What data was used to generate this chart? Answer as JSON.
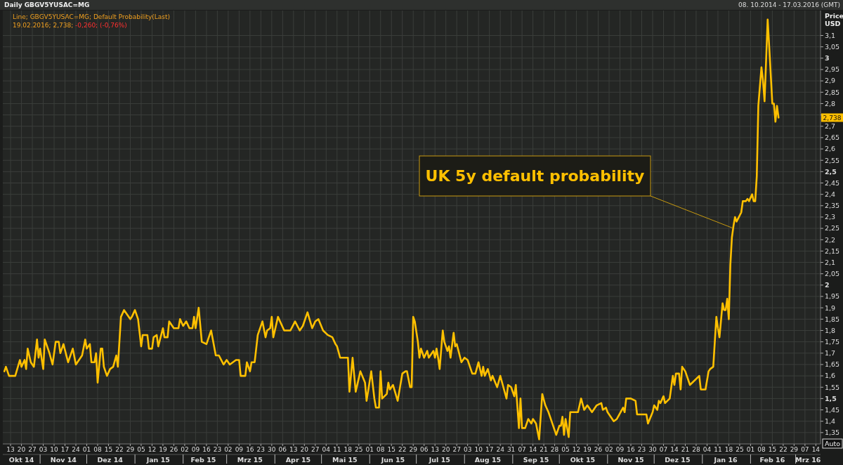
{
  "chart_data": {
    "type": "line",
    "title": "Daily GBGV5YUSAC=MG",
    "subtitle": "Line; GBGV5YUSAC=MG; Default Probability(Last)",
    "ylabel": "Price USD",
    "annotations": [
      "08. 10.2014 - 17.03.2016 (GMT)",
      "19.02.2016; 2,738; -0,260; (-0,76%)",
      {
        "text": "UK 5y default probability",
        "x": "2016-01-21",
        "y": 2.25
      },
      "2,738",
      "Auto"
    ],
    "grid": true,
    "xlim": [
      "2014-10-08",
      "2016-03-17"
    ],
    "ylim": [
      1.3,
      3.21
    ],
    "xticks": [
      {
        "value": "2014-10-13",
        "label": "13"
      },
      {
        "value": "2014-10-20",
        "label": "20"
      },
      {
        "value": "2014-10-27",
        "label": "27"
      },
      {
        "value": "2014-11-03",
        "label": "03"
      },
      {
        "value": "2014-11-10",
        "label": "10"
      },
      {
        "value": "2014-11-17",
        "label": "17"
      },
      {
        "value": "2014-11-24",
        "label": "24"
      },
      {
        "value": "2014-12-01",
        "label": "01"
      },
      {
        "value": "2014-12-08",
        "label": "08"
      },
      {
        "value": "2014-12-15",
        "label": "15"
      },
      {
        "value": "2014-12-22",
        "label": "22"
      },
      {
        "value": "2014-12-29",
        "label": "29"
      },
      {
        "value": "2015-01-05",
        "label": "05"
      },
      {
        "value": "2015-01-12",
        "label": "12"
      },
      {
        "value": "2015-01-19",
        "label": "19"
      },
      {
        "value": "2015-01-26",
        "label": "26"
      },
      {
        "value": "2015-02-02",
        "label": "02"
      },
      {
        "value": "2015-02-09",
        "label": "09"
      },
      {
        "value": "2015-02-16",
        "label": "16"
      },
      {
        "value": "2015-02-23",
        "label": "23"
      },
      {
        "value": "2015-03-02",
        "label": "02"
      },
      {
        "value": "2015-03-09",
        "label": "09"
      },
      {
        "value": "2015-03-16",
        "label": "16"
      },
      {
        "value": "2015-03-23",
        "label": "23"
      },
      {
        "value": "2015-03-30",
        "label": "30"
      },
      {
        "value": "2015-04-06",
        "label": "06"
      },
      {
        "value": "2015-04-13",
        "label": "13"
      },
      {
        "value": "2015-04-20",
        "label": "20"
      },
      {
        "value": "2015-04-27",
        "label": "27"
      },
      {
        "value": "2015-05-04",
        "label": "04"
      },
      {
        "value": "2015-05-11",
        "label": "11"
      },
      {
        "value": "2015-05-18",
        "label": "18"
      },
      {
        "value": "2015-05-25",
        "label": "25"
      },
      {
        "value": "2015-06-01",
        "label": "01"
      },
      {
        "value": "2015-06-08",
        "label": "08"
      },
      {
        "value": "2015-06-15",
        "label": "15"
      },
      {
        "value": "2015-06-22",
        "label": "22"
      },
      {
        "value": "2015-06-29",
        "label": "29"
      },
      {
        "value": "2015-07-06",
        "label": "06"
      },
      {
        "value": "2015-07-13",
        "label": "13"
      },
      {
        "value": "2015-07-20",
        "label": "20"
      },
      {
        "value": "2015-07-27",
        "label": "27"
      },
      {
        "value": "2015-08-03",
        "label": "03"
      },
      {
        "value": "2015-08-10",
        "label": "10"
      },
      {
        "value": "2015-08-17",
        "label": "17"
      },
      {
        "value": "2015-08-24",
        "label": "24"
      },
      {
        "value": "2015-08-31",
        "label": "31"
      },
      {
        "value": "2015-09-07",
        "label": "07"
      },
      {
        "value": "2015-09-14",
        "label": "14"
      },
      {
        "value": "2015-09-21",
        "label": "21"
      },
      {
        "value": "2015-09-28",
        "label": "28"
      },
      {
        "value": "2015-10-05",
        "label": "05"
      },
      {
        "value": "2015-10-12",
        "label": "12"
      },
      {
        "value": "2015-10-19",
        "label": "19"
      },
      {
        "value": "2015-10-26",
        "label": "26"
      },
      {
        "value": "2015-11-02",
        "label": "02"
      },
      {
        "value": "2015-11-09",
        "label": "09"
      },
      {
        "value": "2015-11-16",
        "label": "16"
      },
      {
        "value": "2015-11-23",
        "label": "23"
      },
      {
        "value": "2015-11-30",
        "label": "30"
      },
      {
        "value": "2015-12-07",
        "label": "07"
      },
      {
        "value": "2015-12-14",
        "label": "14"
      },
      {
        "value": "2015-12-21",
        "label": "21"
      },
      {
        "value": "2015-12-28",
        "label": "28"
      },
      {
        "value": "2016-01-04",
        "label": "04"
      },
      {
        "value": "2016-01-11",
        "label": "11"
      },
      {
        "value": "2016-01-18",
        "label": "18"
      },
      {
        "value": "2016-01-25",
        "label": "25"
      },
      {
        "value": "2016-02-01",
        "label": "01"
      },
      {
        "value": "2016-02-08",
        "label": "08"
      },
      {
        "value": "2016-02-15",
        "label": "15"
      },
      {
        "value": "2016-02-22",
        "label": "22"
      },
      {
        "value": "2016-02-29",
        "label": "29"
      },
      {
        "value": "2016-03-07",
        "label": "07"
      },
      {
        "value": "2016-03-14",
        "label": "14"
      }
    ],
    "x2lim": [
      "2014-10-08",
      "2016-03-17"
    ],
    "x2ticks": [
      {
        "value": "2014-10-20",
        "label": "Okt 14"
      },
      {
        "value": "2014-11-16",
        "label": "Nov 14"
      },
      {
        "value": "2014-12-16",
        "label": "Dez 14"
      },
      {
        "value": "2015-01-16",
        "label": "Jan 15"
      },
      {
        "value": "2015-02-14",
        "label": "Feb 15"
      },
      {
        "value": "2015-03-16",
        "label": "Mrz 15"
      },
      {
        "value": "2015-04-16",
        "label": "Apr 15"
      },
      {
        "value": "2015-05-16",
        "label": "Mai 15"
      },
      {
        "value": "2015-06-16",
        "label": "Jun 15"
      },
      {
        "value": "2015-07-16",
        "label": "Jul 15"
      },
      {
        "value": "2015-08-16",
        "label": "Aug 15"
      },
      {
        "value": "2015-09-16",
        "label": "Sep 15"
      },
      {
        "value": "2015-10-16",
        "label": "Okt 15"
      },
      {
        "value": "2015-11-16",
        "label": "Nov 15"
      },
      {
        "value": "2015-12-16",
        "label": "Dez 15"
      },
      {
        "value": "2016-01-16",
        "label": "Jan 16"
      },
      {
        "value": "2016-02-15",
        "label": "Feb 16"
      },
      {
        "value": "2016-03-09",
        "label": "Mrz 16"
      }
    ],
    "yticks": [
      {
        "value": 1.35,
        "label": "1,35"
      },
      {
        "value": 1.4,
        "label": "1,4"
      },
      {
        "value": 1.45,
        "label": "1,45"
      },
      {
        "value": 1.5,
        "label": "1,5"
      },
      {
        "value": 1.55,
        "label": "1,55"
      },
      {
        "value": 1.6,
        "label": "1,6"
      },
      {
        "value": 1.65,
        "label": "1,65"
      },
      {
        "value": 1.7,
        "label": "1,7"
      },
      {
        "value": 1.75,
        "label": "1,75"
      },
      {
        "value": 1.8,
        "label": "1,8"
      },
      {
        "value": 1.85,
        "label": "1,85"
      },
      {
        "value": 1.9,
        "label": "1,9"
      },
      {
        "value": 1.95,
        "label": "1,95"
      },
      {
        "value": 2,
        "label": "2"
      },
      {
        "value": 2.05,
        "label": "2,05"
      },
      {
        "value": 2.1,
        "label": "2,1"
      },
      {
        "value": 2.15,
        "label": "2,15"
      },
      {
        "value": 2.2,
        "label": "2,2"
      },
      {
        "value": 2.25,
        "label": "2,25"
      },
      {
        "value": 2.3,
        "label": "2,3"
      },
      {
        "value": 2.35,
        "label": "2,35"
      },
      {
        "value": 2.4,
        "label": "2,4"
      },
      {
        "value": 2.45,
        "label": "2,45"
      },
      {
        "value": 2.5,
        "label": "2,5"
      },
      {
        "value": 2.55,
        "label": "2,55"
      },
      {
        "value": 2.6,
        "label": "2,6"
      },
      {
        "value": 2.65,
        "label": "2,65"
      },
      {
        "value": 2.7,
        "label": "2,7"
      },
      {
        "value": 2.75,
        "label": null
      },
      {
        "value": 2.8,
        "label": "2,8"
      },
      {
        "value": 2.85,
        "label": "2,85"
      },
      {
        "value": 2.9,
        "label": "2,9"
      },
      {
        "value": 2.95,
        "label": "2,95"
      },
      {
        "value": 3,
        "label": "3"
      },
      {
        "value": 3.05,
        "label": "3,05"
      },
      {
        "value": 3.1,
        "label": "3,1"
      }
    ],
    "series": [
      {
        "color": "#ffc000",
        "x": [
          "2014-10-09",
          "2014-10-10",
          "2014-10-12",
          "2014-10-15",
          "2014-10-16",
          "2014-10-19",
          "2014-10-20",
          "2014-10-22",
          "2014-10-23",
          "2014-10-24",
          "2014-10-26",
          "2014-10-28",
          "2014-10-30",
          "2014-10-31",
          "2014-11-01",
          "2014-11-03",
          "2014-11-04",
          "2014-11-07",
          "2014-11-09",
          "2014-11-11",
          "2014-11-13",
          "2014-11-14",
          "2014-11-16",
          "2014-11-19",
          "2014-11-22",
          "2014-11-24",
          "2014-11-28",
          "2014-11-30",
          "2014-12-01",
          "2014-12-03",
          "2014-12-04",
          "2014-12-06",
          "2014-12-07",
          "2014-12-08",
          "2014-12-10",
          "2014-12-11",
          "2014-12-12",
          "2014-12-14",
          "2014-12-16",
          "2014-12-18",
          "2014-12-20",
          "2014-12-21",
          "2014-12-23",
          "2014-12-25",
          "2014-12-29",
          "2014-12-30",
          "2015-01-01",
          "2015-01-03",
          "2015-01-05",
          "2015-01-06",
          "2015-01-09",
          "2015-01-10",
          "2015-01-12",
          "2015-01-13",
          "2015-01-15",
          "2015-01-16",
          "2015-01-19",
          "2015-01-20",
          "2015-01-22",
          "2015-01-23",
          "2015-01-26",
          "2015-01-29",
          "2015-01-30",
          "2015-02-01",
          "2015-02-03",
          "2015-02-05",
          "2015-02-07",
          "2015-02-08",
          "2015-02-09",
          "2015-02-11",
          "2015-02-13",
          "2015-02-16",
          "2015-02-19",
          "2015-02-22",
          "2015-02-24",
          "2015-02-27",
          "2015-03-01",
          "2015-03-03",
          "2015-03-05",
          "2015-03-07",
          "2015-03-09",
          "2015-03-10",
          "2015-03-13",
          "2015-03-14",
          "2015-03-16",
          "2015-03-17",
          "2015-03-19",
          "2015-03-21",
          "2015-03-24",
          "2015-03-26",
          "2015-03-27",
          "2015-03-29",
          "2015-03-30",
          "2015-03-31",
          "2015-04-03",
          "2015-04-07",
          "2015-04-11",
          "2015-04-14",
          "2015-04-17",
          "2015-04-19",
          "2015-04-22",
          "2015-04-25",
          "2015-04-27",
          "2015-04-29",
          "2015-05-02",
          "2015-05-05",
          "2015-05-08",
          "2015-05-10",
          "2015-05-11",
          "2015-05-13",
          "2015-05-16",
          "2015-05-18",
          "2015-05-19",
          "2015-05-21",
          "2015-05-23",
          "2015-05-26",
          "2015-05-29",
          "2015-05-30",
          "2015-06-02",
          "2015-06-04",
          "2015-06-05",
          "2015-06-07",
          "2015-06-08",
          "2015-06-09",
          "2015-06-12",
          "2015-06-13",
          "2015-06-14",
          "2015-06-16",
          "2015-06-19",
          "2015-06-22",
          "2015-06-24",
          "2015-06-25",
          "2015-06-27",
          "2015-06-28",
          "2015-06-29",
          "2015-06-30",
          "2015-07-02",
          "2015-07-03",
          "2015-07-04",
          "2015-07-06",
          "2015-07-08",
          "2015-07-09",
          "2015-07-12",
          "2015-07-13",
          "2015-07-14",
          "2015-07-15",
          "2015-07-16",
          "2015-07-18",
          "2015-07-19",
          "2015-07-21",
          "2015-07-22",
          "2015-07-23",
          "2015-07-25",
          "2015-07-26",
          "2015-07-27",
          "2015-07-30",
          "2015-08-01",
          "2015-08-03",
          "2015-08-06",
          "2015-08-08",
          "2015-08-10",
          "2015-08-12",
          "2015-08-13",
          "2015-08-14",
          "2015-08-16",
          "2015-08-18",
          "2015-08-19",
          "2015-08-22",
          "2015-08-24",
          "2015-08-26",
          "2015-08-28",
          "2015-08-29",
          "2015-08-31",
          "2015-09-02",
          "2015-09-03",
          "2015-09-05",
          "2015-09-06",
          "2015-09-07",
          "2015-09-09",
          "2015-09-11",
          "2015-09-13",
          "2015-09-14",
          "2015-09-16",
          "2015-09-18",
          "2015-09-20",
          "2015-09-22",
          "2015-09-24",
          "2015-09-26",
          "2015-09-29",
          "2015-10-01",
          "2015-10-02",
          "2015-10-03",
          "2015-10-04",
          "2015-10-05",
          "2015-10-07",
          "2015-10-08",
          "2015-10-10",
          "2015-10-13",
          "2015-10-15",
          "2015-10-17",
          "2015-10-19",
          "2015-10-22",
          "2015-10-25",
          "2015-10-28",
          "2015-10-29",
          "2015-10-31",
          "2015-11-01",
          "2015-11-05",
          "2015-11-07",
          "2015-11-11",
          "2015-11-12",
          "2015-11-13",
          "2015-11-16",
          "2015-11-19",
          "2015-11-20",
          "2015-11-24",
          "2015-11-26",
          "2015-11-27",
          "2015-11-30",
          "2015-12-01",
          "2015-12-03",
          "2015-12-04",
          "2015-12-05",
          "2015-12-07",
          "2015-12-08",
          "2015-12-11",
          "2015-12-13",
          "2015-12-14",
          "2015-12-15",
          "2015-12-17",
          "2015-12-18",
          "2015-12-19",
          "2015-12-21",
          "2015-12-24",
          "2015-12-30",
          "2015-12-31",
          "2016-01-03",
          "2016-01-05",
          "2016-01-06",
          "2016-01-08",
          "2016-01-10",
          "2016-01-11",
          "2016-01-12",
          "2016-01-14",
          "2016-01-15",
          "2016-01-16",
          "2016-01-17",
          "2016-01-18",
          "2016-01-19",
          "2016-01-20",
          "2016-01-21",
          "2016-01-22",
          "2016-01-23",
          "2016-01-26",
          "2016-01-27",
          "2016-01-29",
          "2016-01-30",
          "2016-01-31",
          "2016-02-02",
          "2016-02-03",
          "2016-02-04",
          "2016-02-05",
          "2016-02-06",
          "2016-02-08",
          "2016-02-09",
          "2016-02-10",
          "2016-02-11",
          "2016-02-12",
          "2016-02-13",
          "2016-02-15",
          "2016-02-16",
          "2016-02-17",
          "2016-02-18",
          "2016-02-19"
        ],
        "values": [
          1.62,
          1.64,
          1.6,
          1.6,
          1.6,
          1.67,
          1.64,
          1.67,
          1.63,
          1.72,
          1.66,
          1.64,
          1.76,
          1.68,
          1.72,
          1.63,
          1.76,
          1.7,
          1.65,
          1.75,
          1.75,
          1.7,
          1.74,
          1.66,
          1.72,
          1.65,
          1.69,
          1.76,
          1.72,
          1.74,
          1.66,
          1.66,
          1.7,
          1.57,
          1.72,
          1.72,
          1.64,
          1.6,
          1.63,
          1.64,
          1.69,
          1.64,
          1.86,
          1.89,
          1.85,
          1.86,
          1.89,
          1.85,
          1.73,
          1.78,
          1.78,
          1.72,
          1.72,
          1.77,
          1.78,
          1.73,
          1.81,
          1.77,
          1.77,
          1.84,
          1.81,
          1.81,
          1.85,
          1.82,
          1.84,
          1.81,
          1.81,
          1.86,
          1.81,
          1.9,
          1.75,
          1.74,
          1.8,
          1.69,
          1.69,
          1.65,
          1.67,
          1.65,
          1.66,
          1.67,
          1.67,
          1.6,
          1.6,
          1.66,
          1.62,
          1.66,
          1.66,
          1.78,
          1.84,
          1.77,
          1.8,
          1.81,
          1.86,
          1.77,
          1.86,
          1.8,
          1.8,
          1.84,
          1.8,
          1.82,
          1.88,
          1.81,
          1.84,
          1.85,
          1.8,
          1.78,
          1.77,
          1.74,
          1.73,
          1.68,
          1.68,
          1.68,
          1.53,
          1.68,
          1.53,
          1.62,
          1.57,
          1.49,
          1.62,
          1.5,
          1.46,
          1.46,
          1.62,
          1.5,
          1.52,
          1.57,
          1.54,
          1.56,
          1.49,
          1.61,
          1.62,
          1.62,
          1.55,
          1.55,
          1.86,
          1.84,
          1.75,
          1.68,
          1.72,
          1.68,
          1.71,
          1.68,
          1.71,
          1.68,
          1.72,
          1.68,
          1.63,
          1.8,
          1.75,
          1.71,
          1.73,
          1.68,
          1.79,
          1.73,
          1.74,
          1.66,
          1.68,
          1.67,
          1.61,
          1.61,
          1.66,
          1.6,
          1.64,
          1.6,
          1.63,
          1.58,
          1.6,
          1.55,
          1.6,
          1.55,
          1.5,
          1.56,
          1.55,
          1.51,
          1.56,
          1.37,
          1.5,
          1.37,
          1.37,
          1.41,
          1.39,
          1.41,
          1.39,
          1.32,
          1.52,
          1.47,
          1.44,
          1.4,
          1.34,
          1.38,
          1.38,
          1.42,
          1.34,
          1.41,
          1.33,
          1.44,
          1.44,
          1.44,
          1.5,
          1.45,
          1.47,
          1.44,
          1.47,
          1.48,
          1.45,
          1.46,
          1.44,
          1.4,
          1.41,
          1.46,
          1.44,
          1.5,
          1.5,
          1.49,
          1.43,
          1.43,
          1.43,
          1.39,
          1.44,
          1.47,
          1.45,
          1.49,
          1.48,
          1.51,
          1.48,
          1.5,
          1.6,
          1.56,
          1.61,
          1.61,
          1.54,
          1.64,
          1.62,
          1.56,
          1.6,
          1.54,
          1.54,
          1.62,
          1.63,
          1.64,
          1.86,
          1.81,
          1.77,
          1.92,
          1.89,
          1.89,
          1.94,
          1.85,
          2.09,
          2.21,
          2.26,
          2.3,
          2.28,
          2.32,
          2.37,
          2.37,
          2.38,
          2.37,
          2.4,
          2.37,
          2.37,
          2.48,
          2.79,
          2.96,
          2.9,
          2.81,
          2.99,
          3.17,
          3.05,
          2.8,
          2.8,
          2.72,
          2.79,
          2.738
        ]
      }
    ]
  }
}
